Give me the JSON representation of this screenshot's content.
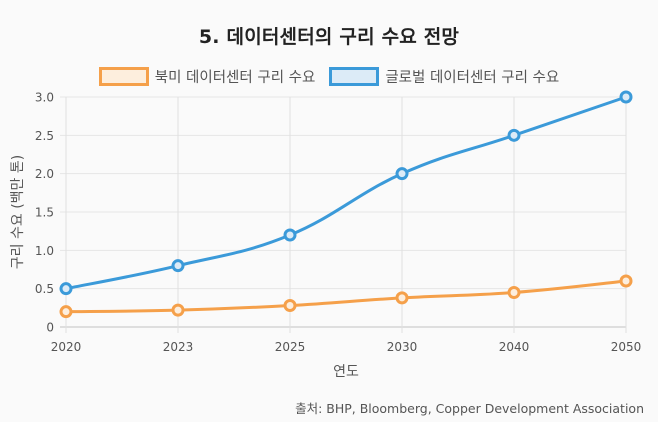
{
  "chart_data": {
    "type": "line",
    "title": "5. 데이터센터의 구리 수요 전망",
    "xlabel": "연도",
    "ylabel": "구리 수요 (백만 톤)",
    "categories": [
      "2020",
      "2023",
      "2025",
      "2030",
      "2040",
      "2050"
    ],
    "ylim": [
      0,
      3.0
    ],
    "yticks": [
      "0",
      "0.5",
      "1.0",
      "1.5",
      "2.0",
      "2.5",
      "3.0"
    ],
    "ytick_values": [
      0,
      0.5,
      1.0,
      1.5,
      2.0,
      2.5,
      3.0
    ],
    "grid": true,
    "legend_position": "top-center",
    "series": [
      {
        "name": "북미 데이터센터 구리 수요",
        "values": [
          0.2,
          0.22,
          0.28,
          0.38,
          0.45,
          0.6
        ],
        "color": "#f5a04a",
        "fill": "#fdeedd"
      },
      {
        "name": "글로벌 데이터센터 구리 수요",
        "values": [
          0.5,
          0.8,
          1.2,
          2.0,
          2.5,
          3.0
        ],
        "color": "#3b9ad9",
        "fill": "#dcebf7"
      }
    ]
  },
  "source": "출처: BHP, Bloomberg, Copper Development Association"
}
